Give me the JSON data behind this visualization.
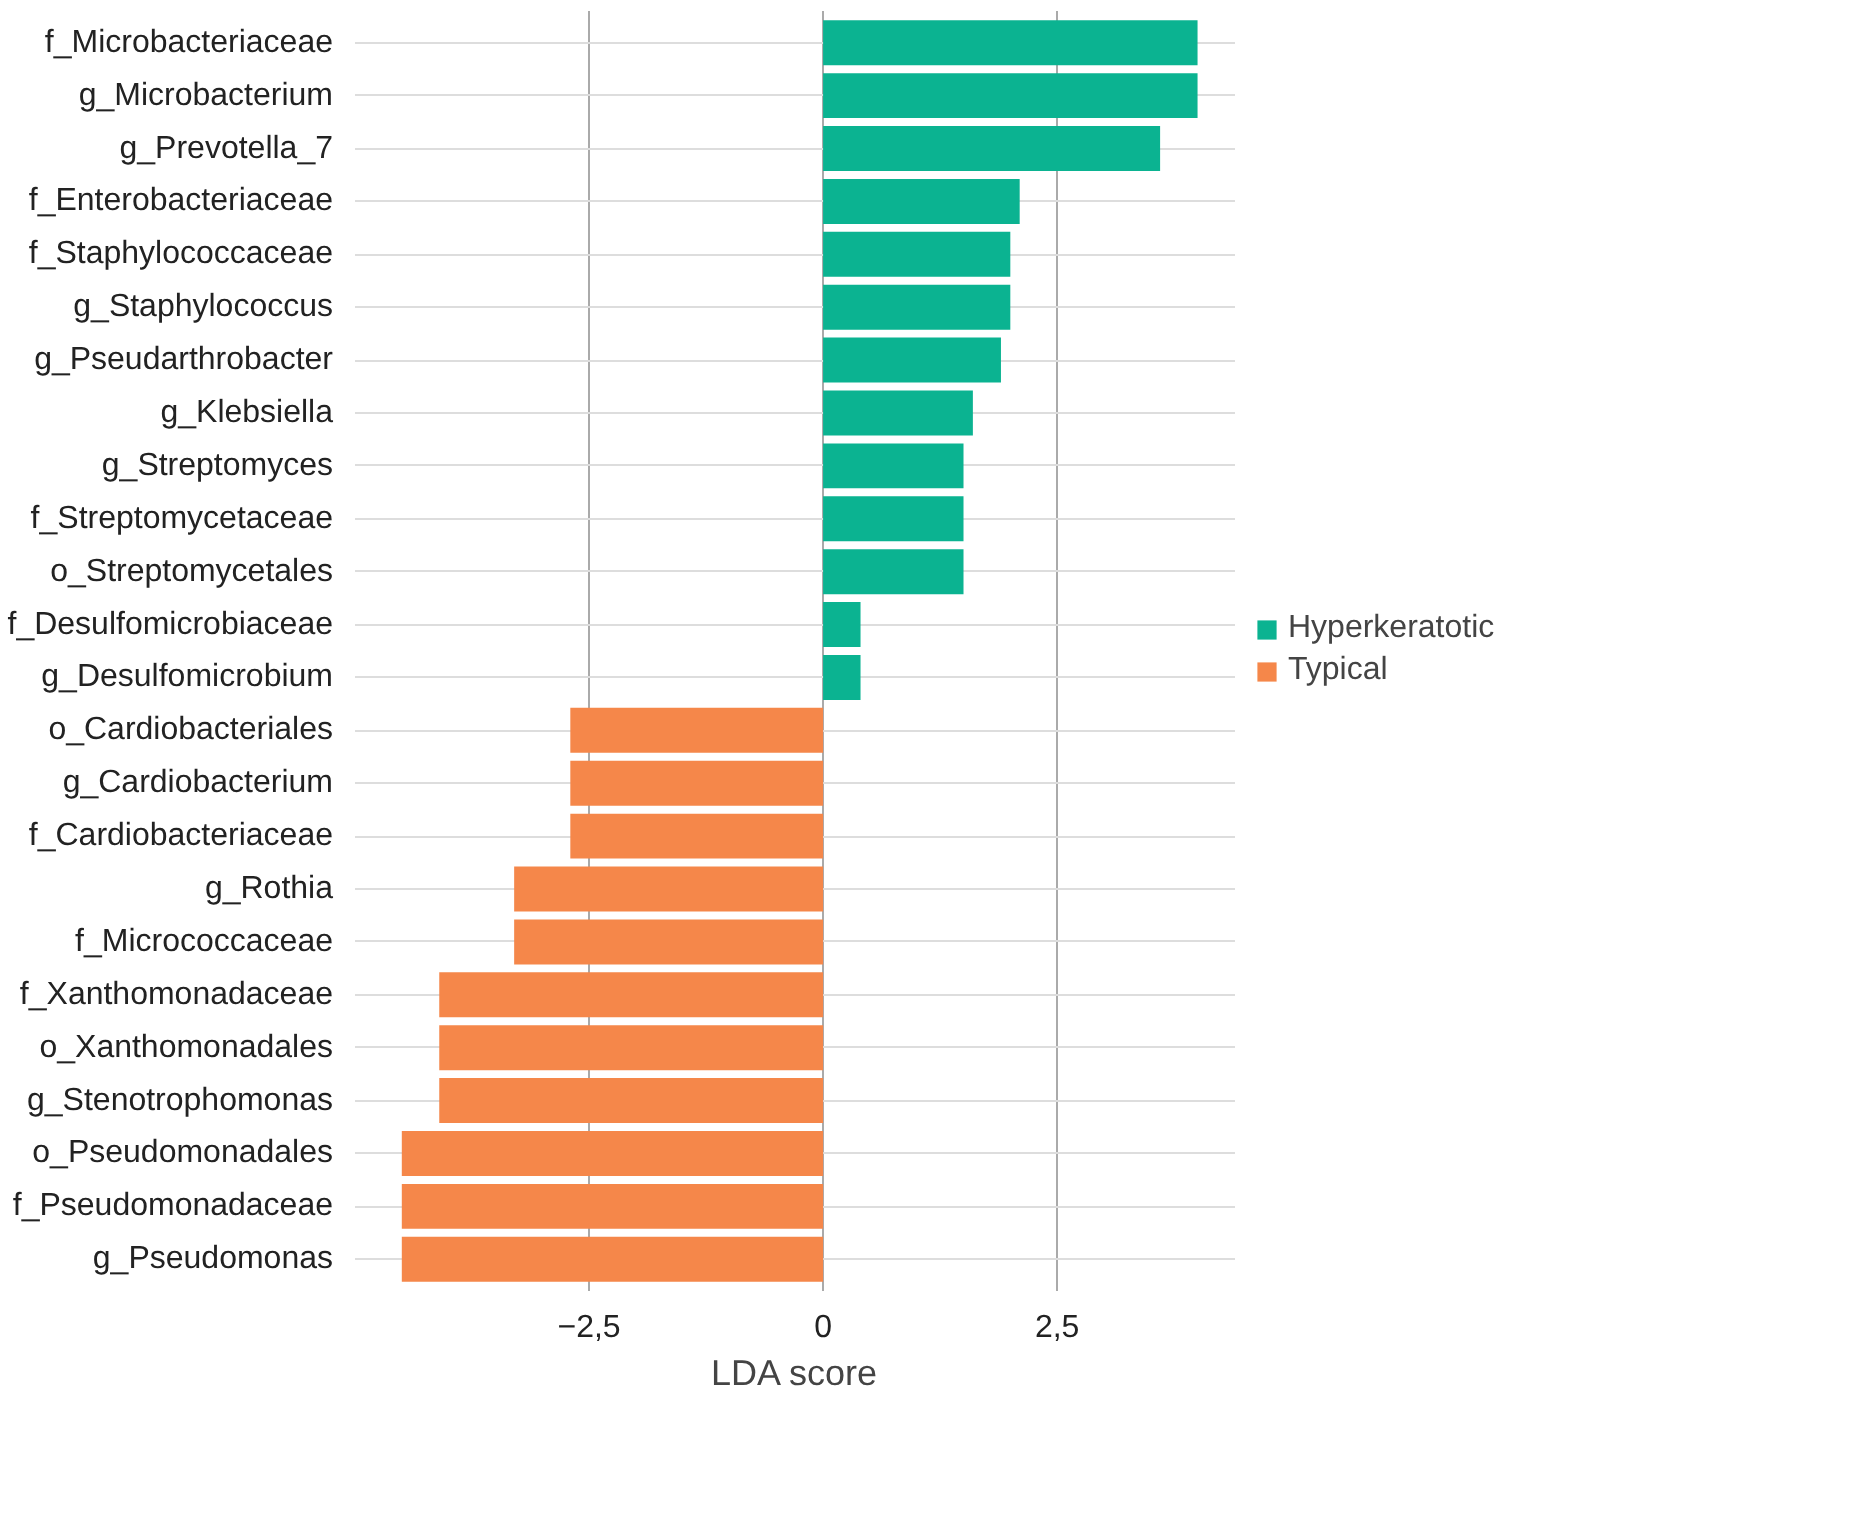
{
  "chart_data": {
    "type": "bar",
    "orientation": "horizontal",
    "xlabel": "LDA score",
    "categories": [
      "f_Microbacteriaceae",
      "g_Microbacterium",
      "g_Prevotella_7",
      "f_Enterobacteriaceae",
      "f_Staphylococcaceae",
      "g_Staphylococcus",
      "g_Pseudarthrobacter",
      "g_Klebsiella",
      "g_Streptomyces",
      "f_Streptomycetaceae",
      "o_Streptomycetales",
      "f_Desulfomicrobiaceae",
      "g_Desulfomicrobium",
      "o_Cardiobacteriales",
      "g_Cardiobacterium",
      "f_Cardiobacteriaceae",
      "g_Rothia",
      "f_Micrococcaceae",
      "f_Xanthomonadaceae",
      "o_Xanthomonadales",
      "g_Stenotrophomonas",
      "o_Pseudomonadales",
      "f_Pseudomonadaceae",
      "g_Pseudomonas"
    ],
    "series": [
      {
        "name": "Hyperkeratotic",
        "color": "#0bb391",
        "values": [
          4.0,
          4.0,
          3.6,
          2.1,
          2.0,
          2.0,
          1.9,
          1.6,
          1.5,
          1.5,
          1.5,
          0.4,
          0.4,
          null,
          null,
          null,
          null,
          null,
          null,
          null,
          null,
          null,
          null,
          null
        ]
      },
      {
        "name": "Typical",
        "color": "#f5874a",
        "values": [
          null,
          null,
          null,
          null,
          null,
          null,
          null,
          null,
          null,
          null,
          null,
          null,
          null,
          -2.7,
          -2.7,
          -2.7,
          -3.3,
          -3.3,
          -4.1,
          -4.1,
          -4.1,
          -4.5,
          -4.5,
          -4.5
        ]
      }
    ],
    "xlim": [
      -5.0,
      4.4
    ],
    "xticks": [
      {
        "value": -2.5,
        "label": "−2,5"
      },
      0,
      {
        "value": 2.5,
        "label": "2,5"
      }
    ],
    "grid": true,
    "legend": "right"
  }
}
